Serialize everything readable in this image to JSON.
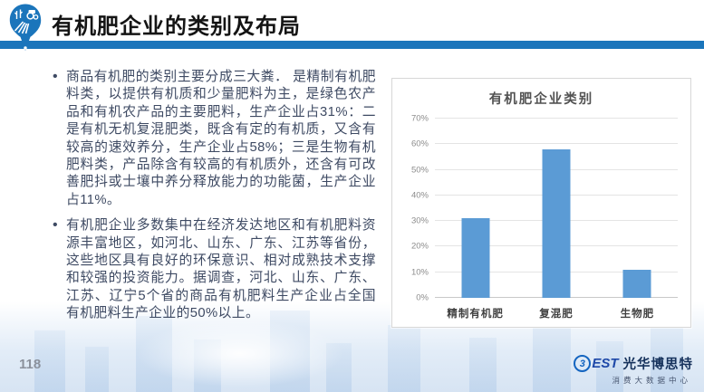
{
  "header": {
    "title": "有机肥企业的类别及布局",
    "accent_color": "#1b75bb",
    "icon": "farm-location-pin-icon"
  },
  "content": {
    "bullets": [
      {
        "text": "商品有机肥的类别主要分成三大粪． 是精制有机肥料类，以提供有机质和少量肥料为主，是绿色农产品和有机农产品的主要肥料，生产企业占31%：二是有机无机复混肥类，既含有定的有机质，又含有较高的速效养分，生产企业占58%；三是生物有机肥料类，产品除含有较高的有机质外，还含有可改善肥抖或士壤中养分释放能力的功能菌，生产企业占11%。"
      },
      {
        "text": "有机肥企业多数集中在经济发达地区和有机肥料资源丰富地区，如河北、山东、广东、江苏等省份，这些地区具有良好的环保意识、相对成熟技术支撑和较强的投资能力。据调查，河北、山东、广东、江苏、辽宁5个省的商品有机肥料生产企业占全国有机肥料生产企业的50%以上。"
      }
    ]
  },
  "chart_data": {
    "type": "bar",
    "title": "有机肥企业类别",
    "categories": [
      "精制有机肥",
      "复混肥",
      "生物肥"
    ],
    "values": [
      31,
      58,
      11
    ],
    "xlabel": "",
    "ylabel": "",
    "ylim": [
      0,
      70
    ],
    "ytick_step": 10,
    "ytick_suffix": "%",
    "grid": true,
    "legend": "none",
    "bar_color": "#5b9bd5"
  },
  "footer": {
    "page_number": "118",
    "logo": {
      "b_glyph": "3",
      "brand_rest": "EST",
      "name": "光华博思特",
      "subtitle": "消费大数据中心"
    }
  }
}
